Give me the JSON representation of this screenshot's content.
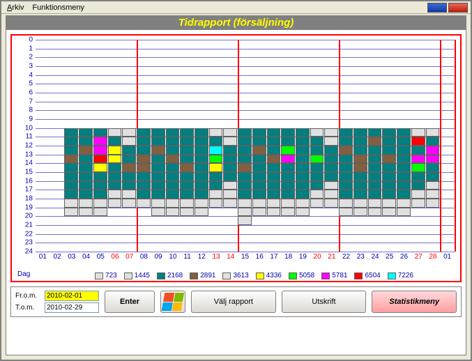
{
  "menu": {
    "arkiv": "Arkiv",
    "funktionsmeny": "Funktionsmeny"
  },
  "title": "Tidrapport (försäljning)",
  "chart": {
    "y_min": 0,
    "y_max": 24,
    "y_step": 1,
    "y_color": "#0000aa",
    "days": [
      "01",
      "02",
      "03",
      "04",
      "05",
      "06",
      "07",
      "08",
      "09",
      "10",
      "11",
      "12",
      "13",
      "14",
      "15",
      "16",
      "17",
      "18",
      "19",
      "20",
      "21",
      "22",
      "23",
      "24",
      "25",
      "26",
      "27",
      "28",
      "01"
    ],
    "red_indices": [
      5,
      6,
      12,
      13,
      19,
      20,
      26,
      27
    ],
    "red_vlines_after": [
      6,
      13,
      20,
      27,
      28
    ],
    "dag_label": "Dag",
    "colors": {
      "1": "#e0e0e0",
      "2": "#008080",
      "3": "#806040",
      "4": "#e0e0e0",
      "5": "#ffff00",
      "6": "#00ff00",
      "7": "#ff00ff",
      "8": "#ff0000",
      "9": "#00ffff"
    },
    "grid": {
      "03": {
        "10": 2,
        "11": 2,
        "12": 2,
        "13": 3,
        "14": 2,
        "15": 2,
        "16": 2,
        "17": 2,
        "18": 1,
        "19": 1
      },
      "04": {
        "10": 2,
        "11": 2,
        "12": 3,
        "13": 2,
        "14": 2,
        "15": 2,
        "16": 2,
        "17": 2,
        "18": 1,
        "19": 1
      },
      "05": {
        "10": 2,
        "11": 7,
        "12": 7,
        "13": 8,
        "14": 5,
        "15": 2,
        "16": 2,
        "17": 2,
        "18": 1,
        "19": 1
      },
      "06": {
        "10": 1,
        "11": 2,
        "12": 5,
        "13": 5,
        "14": 2,
        "15": 2,
        "16": 2,
        "17": 1,
        "18": 1
      },
      "07": {
        "10": 1,
        "11": 1,
        "12": 2,
        "13": 2,
        "14": 3,
        "15": 2,
        "16": 2,
        "17": 1,
        "18": 1
      },
      "08": {
        "10": 2,
        "11": 2,
        "12": 2,
        "13": 3,
        "14": 3,
        "15": 2,
        "16": 2,
        "17": 2,
        "18": 1
      },
      "09": {
        "10": 2,
        "11": 2,
        "12": 3,
        "13": 2,
        "14": 2,
        "15": 2,
        "16": 2,
        "17": 2,
        "18": 1,
        "19": 1
      },
      "10": {
        "10": 2,
        "11": 2,
        "12": 2,
        "13": 3,
        "14": 2,
        "15": 2,
        "16": 2,
        "17": 2,
        "18": 1,
        "19": 1
      },
      "11": {
        "10": 2,
        "11": 2,
        "12": 2,
        "13": 2,
        "14": 3,
        "15": 2,
        "16": 2,
        "17": 2,
        "18": 1,
        "19": 1
      },
      "12": {
        "10": 2,
        "11": 2,
        "12": 2,
        "13": 2,
        "14": 2,
        "15": 2,
        "16": 2,
        "17": 2,
        "18": 1,
        "19": 1
      },
      "13": {
        "10": 1,
        "11": 2,
        "12": 9,
        "13": 6,
        "14": 5,
        "15": 2,
        "16": 2,
        "17": 1,
        "18": 1
      },
      "14": {
        "10": 1,
        "11": 1,
        "12": 2,
        "13": 2,
        "14": 2,
        "15": 2,
        "16": 1,
        "17": 1,
        "18": 1
      },
      "15": {
        "10": 2,
        "11": 2,
        "12": 2,
        "13": 2,
        "14": 3,
        "15": 2,
        "16": 2,
        "17": 2,
        "18": 1,
        "19": 1,
        "20": 1
      },
      "16": {
        "10": 2,
        "11": 2,
        "12": 3,
        "13": 2,
        "14": 2,
        "15": 2,
        "16": 2,
        "17": 2,
        "18": 1,
        "19": 1
      },
      "17": {
        "10": 2,
        "11": 2,
        "12": 2,
        "13": 3,
        "14": 2,
        "15": 2,
        "16": 2,
        "17": 2,
        "18": 1,
        "19": 1
      },
      "18": {
        "10": 2,
        "11": 2,
        "12": 6,
        "13": 7,
        "14": 2,
        "15": 2,
        "16": 2,
        "17": 2,
        "18": 1,
        "19": 1
      },
      "19": {
        "10": 2,
        "11": 2,
        "12": 2,
        "13": 2,
        "14": 2,
        "15": 2,
        "16": 2,
        "17": 2,
        "18": 1,
        "19": 1
      },
      "20": {
        "10": 1,
        "11": 2,
        "12": 2,
        "13": 6,
        "14": 2,
        "15": 2,
        "16": 2,
        "17": 1,
        "18": 1
      },
      "21": {
        "10": 1,
        "11": 1,
        "12": 2,
        "13": 2,
        "14": 2,
        "15": 2,
        "16": 1,
        "17": 1,
        "18": 1
      },
      "22": {
        "10": 2,
        "11": 2,
        "12": 3,
        "13": 2,
        "14": 2,
        "15": 2,
        "16": 2,
        "17": 2,
        "18": 1,
        "19": 1
      },
      "23": {
        "10": 2,
        "11": 2,
        "12": 2,
        "13": 3,
        "14": 3,
        "15": 2,
        "16": 2,
        "17": 2,
        "18": 1,
        "19": 1
      },
      "24": {
        "10": 2,
        "11": 3,
        "12": 2,
        "13": 2,
        "14": 2,
        "15": 2,
        "16": 2,
        "17": 2,
        "18": 1,
        "19": 1
      },
      "25": {
        "10": 2,
        "11": 2,
        "12": 2,
        "13": 3,
        "14": 2,
        "15": 2,
        "16": 2,
        "17": 2,
        "18": 1,
        "19": 1
      },
      "26": {
        "10": 2,
        "11": 2,
        "12": 2,
        "13": 2,
        "14": 2,
        "15": 2,
        "16": 2,
        "17": 2,
        "18": 1,
        "19": 1
      },
      "27": {
        "10": 1,
        "11": 8,
        "12": 2,
        "13": 7,
        "14": 6,
        "15": 2,
        "16": 2,
        "17": 1,
        "18": 1
      },
      "28": {
        "10": 1,
        "11": 2,
        "12": 7,
        "13": 7,
        "14": 2,
        "15": 2,
        "16": 1,
        "17": 1,
        "18": 1
      }
    }
  },
  "legend": [
    {
      "c": "#e0e0e0",
      "l": "723"
    },
    {
      "c": "#e0e0e0",
      "l": "1445"
    },
    {
      "c": "#008080",
      "l": "2168"
    },
    {
      "c": "#806040",
      "l": "2891"
    },
    {
      "c": "#e0e0e0",
      "l": "3613"
    },
    {
      "c": "#ffff00",
      "l": "4336"
    },
    {
      "c": "#00ff00",
      "l": "5058"
    },
    {
      "c": "#ff00ff",
      "l": "5781"
    },
    {
      "c": "#ff0000",
      "l": "6504"
    },
    {
      "c": "#00ffff",
      "l": "7226"
    }
  ],
  "form": {
    "from_label": "Fr.o.m.",
    "to_label": "T.o.m.",
    "from_value": "2010-02-01",
    "to_value": "2010-02-29",
    "enter": "Enter",
    "valj": "Välj rapport",
    "utskrift": "Utskrift",
    "stats": "Statistikmeny"
  }
}
